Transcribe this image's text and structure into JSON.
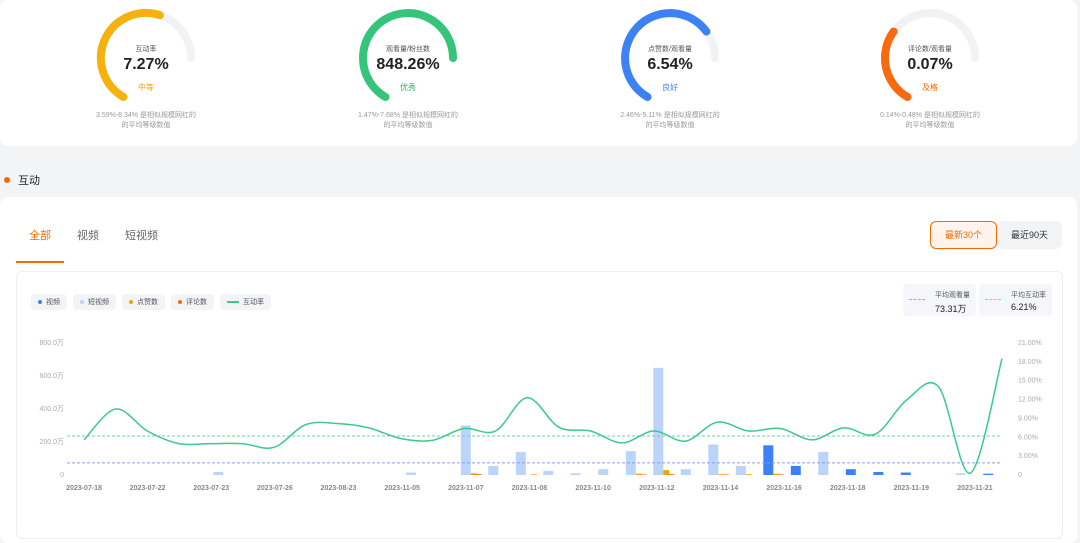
{
  "metrics": [
    {
      "label": "互动率",
      "value": "7.27%",
      "level": "中等",
      "level_color": "#f5a300",
      "color": "#f5b10e",
      "fraction": 0.7,
      "desc1": "3.59%-8.34% 是相似规模网红的",
      "desc2": "的平均等级数值"
    },
    {
      "label": "观看量/粉丝数",
      "value": "848.26%",
      "level": "优秀",
      "level_color": "#2fb36b",
      "color": "#35c47a",
      "fraction": 1.0,
      "desc1": "1.47%-7.68% 是相似规模网红的",
      "desc2": "的平均等级数值"
    },
    {
      "label": "点赞数/观看量",
      "value": "6.54%",
      "level": "良好",
      "level_color": "#3b82f6",
      "color": "#3d82f5",
      "fraction": 0.85,
      "desc1": "2.46%-5.11% 是相似规模网红的",
      "desc2": "的平均等级数值"
    },
    {
      "label": "评论数/观看量",
      "value": "0.07%",
      "level": "及格",
      "level_color": "#f56a00",
      "color": "#f86a12",
      "fraction": 0.4,
      "desc1": "0.14%-0.48% 是相似规模网红的",
      "desc2": "的平均等级数值"
    }
  ],
  "section_title": "互动",
  "tabs": [
    "全部",
    "视频",
    "短视频"
  ],
  "range": {
    "recent30": "最新30个",
    "recent90": "最近90天"
  },
  "legend": [
    {
      "label": "视频",
      "color": "#3b82f6",
      "kind": "dot"
    },
    {
      "label": "短视频",
      "color": "#bcd3fa",
      "kind": "dot"
    },
    {
      "label": "点赞数",
      "color": "#f5a300",
      "kind": "dot"
    },
    {
      "label": "评论数",
      "color": "#f56a00",
      "kind": "dot"
    },
    {
      "label": "互动率",
      "color": "#3cc98a",
      "kind": "line"
    }
  ],
  "avg_views": {
    "label": "平均观看量",
    "value": "73.31万",
    "color": "#8fb3f3"
  },
  "avg_rate": {
    "label": "平均互动率",
    "value": "6.21%",
    "color": "#7fd8b0"
  },
  "chart_data": {
    "type": "bar",
    "x_ticks": [
      "2023-07-18",
      "2023-07-22",
      "2023-07-23",
      "2023-07-26",
      "2023-08-23",
      "2023-11-05",
      "2023-11-07",
      "2023-11-08",
      "2023-11-10",
      "2023-11-12",
      "2023-11-14",
      "2023-11-16",
      "2023-11-18",
      "2023-11-19",
      "2023-11-21"
    ],
    "y_ticks": [
      "0",
      "200.0万",
      "400.0万",
      "600.0万",
      "800.0万"
    ],
    "y_max_wan": 800,
    "y2_ticks": [
      "0",
      "3.00%",
      "6.00%",
      "9.00%",
      "12.00%",
      "15.00%",
      "18.00%",
      "21.00%"
    ],
    "y2_max": 21,
    "series": [
      {
        "name": "短视频",
        "color": "#bcd3fa",
        "values": [
          0,
          0,
          0,
          0,
          0,
          18,
          0,
          0,
          0,
          0,
          0,
          0,
          15,
          0,
          300,
          55,
          140,
          25,
          10,
          35,
          145,
          650,
          35,
          185,
          55,
          0,
          0,
          140,
          0,
          0,
          0,
          0,
          10,
          0
        ]
      },
      {
        "name": "视频",
        "color": "#3b82f6",
        "values": [
          0,
          0,
          0,
          0,
          0,
          0,
          0,
          0,
          0,
          0,
          0,
          0,
          0,
          0,
          0,
          0,
          0,
          0,
          0,
          0,
          0,
          0,
          0,
          0,
          0,
          180,
          55,
          0,
          35,
          18,
          15,
          0,
          0,
          8
        ]
      },
      {
        "name": "点赞数",
        "color": "#f5a300",
        "values": [
          0,
          0,
          0,
          0,
          0,
          0,
          0,
          0,
          0,
          0,
          0,
          0,
          0,
          0,
          10,
          0,
          0,
          0,
          0,
          0,
          8,
          30,
          0,
          5,
          5,
          8,
          0,
          0,
          0,
          0,
          0,
          0,
          0,
          0
        ]
      },
      {
        "name": "评论数",
        "color": "#f56a00",
        "values": [
          0,
          0,
          0,
          0,
          0,
          0,
          0,
          0,
          0,
          0,
          0,
          0,
          0,
          0,
          5,
          0,
          3,
          0,
          0,
          0,
          3,
          5,
          0,
          3,
          0,
          3,
          0,
          0,
          0,
          0,
          0,
          0,
          0,
          0
        ]
      },
      {
        "name": "互动率",
        "color": "#3cc98a",
        "values": [
          5.6,
          10.5,
          7.0,
          5.0,
          5.0,
          5.0,
          4.4,
          8.0,
          8.2,
          7.5,
          5.8,
          5.5,
          7.4,
          7.0,
          12.3,
          7.6,
          7.0,
          5.1,
          7.0,
          5.4,
          8.4,
          7.0,
          7.4,
          5.6,
          7.5,
          6.5,
          12.0,
          14.0,
          0.3,
          18.5
        ]
      }
    ],
    "avg_line_views_wan": 73.31,
    "avg_line_rate": 6.21
  }
}
